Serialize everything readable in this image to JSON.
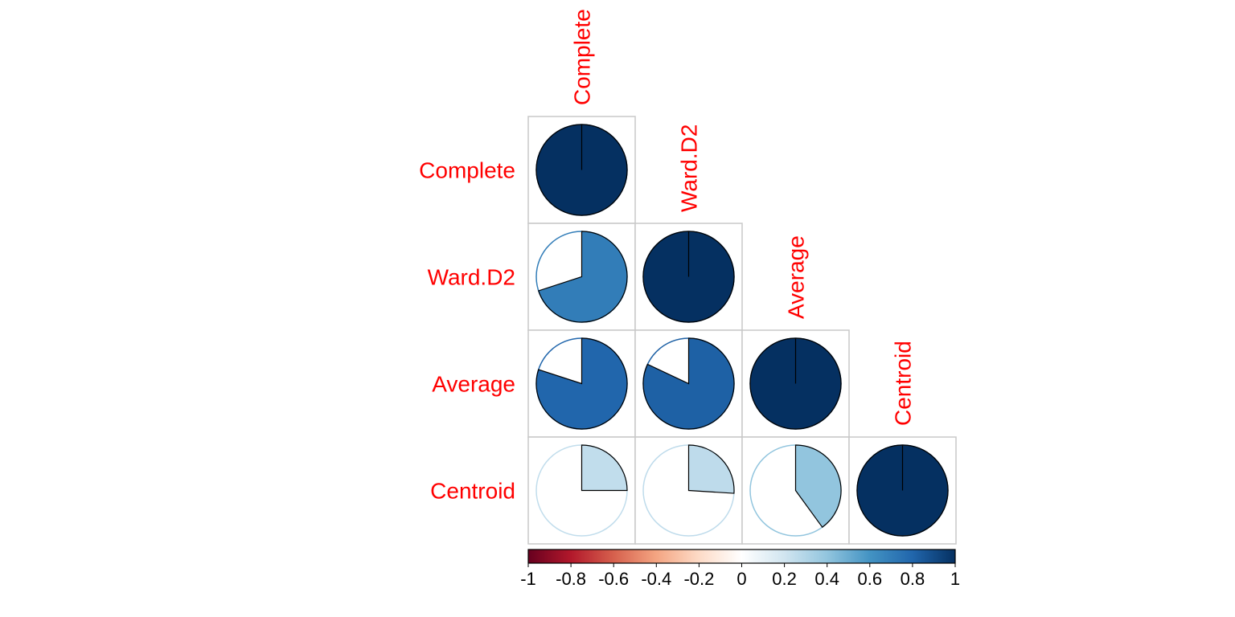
{
  "chart_data": {
    "type": "heatmap",
    "subtype": "correlation-pie",
    "layout": "lower-triangle",
    "variables": [
      "Complete",
      "Ward.D2",
      "Average",
      "Centroid"
    ],
    "matrix": [
      [
        1.0,
        0.7,
        0.8,
        0.25
      ],
      [
        0.7,
        1.0,
        0.82,
        0.26
      ],
      [
        0.8,
        0.82,
        1.0,
        0.4
      ],
      [
        0.25,
        0.26,
        0.4,
        1.0
      ]
    ],
    "label_color": "#FF0000",
    "colorbar": {
      "range": [
        -1,
        1
      ],
      "ticks": [
        "-1",
        "-0.8",
        "-0.6",
        "-0.4",
        "-0.2",
        "0",
        "0.2",
        "0.4",
        "0.6",
        "0.8",
        "1"
      ],
      "placement": "bottom",
      "colors": [
        "#67001F",
        "#B2182B",
        "#D6604D",
        "#F4A582",
        "#FDDBC7",
        "#FFFFFF",
        "#D1E5F0",
        "#92C5DE",
        "#4393C3",
        "#2166AC",
        "#053061"
      ]
    },
    "grid": true,
    "title": "",
    "xlabel": "",
    "ylabel": ""
  }
}
